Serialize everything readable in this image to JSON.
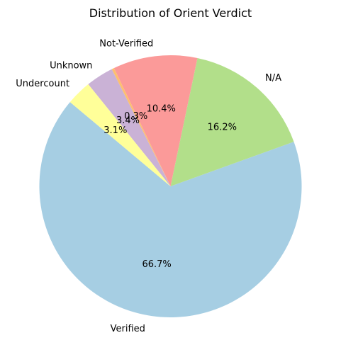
{
  "chart_data": {
    "type": "pie",
    "title": "Distribution of Orient Verdict",
    "start_angle_deg": 140,
    "direction": "counterclockwise",
    "slices": [
      {
        "label": "Verified",
        "percent_label": "66.7%",
        "value": 66.7,
        "color": "#a6cee3"
      },
      {
        "label": "N/A",
        "percent_label": "16.2%",
        "value": 16.2,
        "color": "#b2df8a"
      },
      {
        "label": "Not-Verified",
        "percent_label": "10.4%",
        "value": 10.4,
        "color": "#fb9a99"
      },
      {
        "label": "",
        "percent_label": "0.3%",
        "value": 0.3,
        "color": "#fdbf6f"
      },
      {
        "label": "Unknown",
        "percent_label": "3.4%",
        "value": 3.4,
        "color": "#cab2d6"
      },
      {
        "label": "Undercount",
        "percent_label": "3.1%",
        "value": 3.1,
        "color": "#ffff99"
      }
    ]
  }
}
